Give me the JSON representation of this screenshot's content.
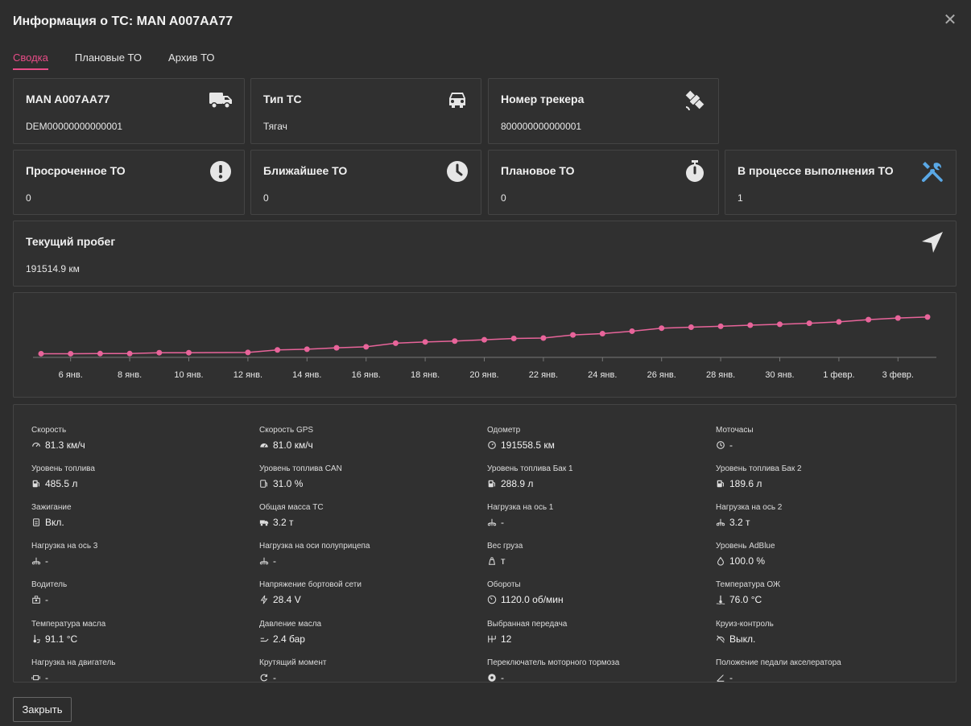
{
  "header": {
    "title": "Информация о ТС: MAN A007AA77",
    "close_glyph": "✕"
  },
  "tabs": [
    {
      "label": "Сводка",
      "active": true
    },
    {
      "label": "Плановые ТО",
      "active": false
    },
    {
      "label": "Архив ТО",
      "active": false
    }
  ],
  "cards": {
    "vehicle": {
      "title": "MAN A007AA77",
      "value": "DEM00000000000001",
      "icon": "truck-icon"
    },
    "type": {
      "title": "Тип ТС",
      "value": "Тягач",
      "icon": "car-icon"
    },
    "tracker": {
      "title": "Номер трекера",
      "value": "800000000000001",
      "icon": "satellite-icon"
    },
    "overdue": {
      "title": "Просроченное ТО",
      "value": "0",
      "icon": "exclamation-icon"
    },
    "nearest": {
      "title": "Ближайшее ТО",
      "value": "0",
      "icon": "clock-icon"
    },
    "planned": {
      "title": "Плановое ТО",
      "value": "0",
      "icon": "stopwatch-icon"
    },
    "in_progress": {
      "title": "В процессе выполнения ТО",
      "value": "1",
      "icon": "tools-icon",
      "icon_color": "#5aa8e6"
    },
    "mileage": {
      "title": "Текущий пробег",
      "value": "191514.9 км",
      "icon": "location-arrow-icon"
    }
  },
  "chart_data": {
    "type": "line",
    "title": "",
    "xlabel": "",
    "ylabel": "",
    "line_color": "#e8649a",
    "tick_labels": [
      "6 янв.",
      "8 янв.",
      "10 янв.",
      "12 янв.",
      "14 янв.",
      "16 янв.",
      "18 янв.",
      "20 янв.",
      "22 янв.",
      "24 янв.",
      "26 янв.",
      "28 янв.",
      "30 янв.",
      "1 февр.",
      "3 февр."
    ],
    "x_start_day": 5,
    "x_end_day": 35,
    "ylim": [
      187500,
      192000
    ],
    "points": [
      {
        "day": 5,
        "value": 187600
      },
      {
        "day": 6,
        "value": 187600
      },
      {
        "day": 7,
        "value": 187610
      },
      {
        "day": 8,
        "value": 187610
      },
      {
        "day": 9,
        "value": 187680
      },
      {
        "day": 10,
        "value": 187680
      },
      {
        "day": 12,
        "value": 187700
      },
      {
        "day": 13,
        "value": 187900
      },
      {
        "day": 14,
        "value": 187960
      },
      {
        "day": 15,
        "value": 188070
      },
      {
        "day": 16,
        "value": 188150
      },
      {
        "day": 17,
        "value": 188440
      },
      {
        "day": 18,
        "value": 188540
      },
      {
        "day": 19,
        "value": 188610
      },
      {
        "day": 20,
        "value": 188710
      },
      {
        "day": 21,
        "value": 188820
      },
      {
        "day": 22,
        "value": 188850
      },
      {
        "day": 23,
        "value": 189100
      },
      {
        "day": 24,
        "value": 189200
      },
      {
        "day": 25,
        "value": 189400
      },
      {
        "day": 26,
        "value": 189640
      },
      {
        "day": 27,
        "value": 189720
      },
      {
        "day": 28,
        "value": 189790
      },
      {
        "day": 29,
        "value": 189880
      },
      {
        "day": 30,
        "value": 189950
      },
      {
        "day": 31,
        "value": 190030
      },
      {
        "day": 32,
        "value": 190140
      },
      {
        "day": 33,
        "value": 190320
      },
      {
        "day": 34,
        "value": 190450
      },
      {
        "day": 35,
        "value": 190530
      }
    ]
  },
  "telemetry": [
    {
      "label": "Скорость",
      "value": "81.3 км/ч",
      "icon": "speedometer-icon"
    },
    {
      "label": "Скорость GPS",
      "value": "81.0 км/ч",
      "icon": "speedometer-filled-icon"
    },
    {
      "label": "Одометр",
      "value": "191558.5 км",
      "icon": "odometer-icon"
    },
    {
      "label": "Моточасы",
      "value": "-",
      "icon": "clock-small-icon"
    },
    {
      "label": "Уровень топлива",
      "value": "485.5 л",
      "icon": "fuel-icon"
    },
    {
      "label": "Уровень топлива CAN",
      "value": "31.0 %",
      "icon": "fuel-can-icon"
    },
    {
      "label": "Уровень топлива Бак 1",
      "value": "288.9 л",
      "icon": "fuel-icon"
    },
    {
      "label": "Уровень топлива Бак 2",
      "value": "189.6 л",
      "icon": "fuel-icon"
    },
    {
      "label": "Зажигание",
      "value": "Вкл.",
      "icon": "ignition-icon"
    },
    {
      "label": "Общая масса ТС",
      "value": "3.2 т",
      "icon": "truck-small-icon"
    },
    {
      "label": "Нагрузка на ось 1",
      "value": "-",
      "icon": "axle-icon"
    },
    {
      "label": "Нагрузка на ось 2",
      "value": "3.2 т",
      "icon": "axle-icon"
    },
    {
      "label": "Нагрузка на ось 3",
      "value": "-",
      "icon": "axle-icon"
    },
    {
      "label": "Нагрузка на оси полуприцепа",
      "value": "-",
      "icon": "axle-icon"
    },
    {
      "label": "Вес груза",
      "value": "т",
      "icon": "weight-icon"
    },
    {
      "label": "Уровень AdBlue",
      "value": "100.0 %",
      "icon": "drop-icon"
    },
    {
      "label": "Водитель",
      "value": "-",
      "icon": "driver-icon"
    },
    {
      "label": "Напряжение бортовой сети",
      "value": "28.4 V",
      "icon": "lightning-icon"
    },
    {
      "label": "Обороты",
      "value": "1120.0 об/мин",
      "icon": "rpm-icon"
    },
    {
      "label": "Температура ОЖ",
      "value": "76.0 °C",
      "icon": "coolant-temp-icon"
    },
    {
      "label": "Температура масла",
      "value": "91.1 °C",
      "icon": "oil-temp-icon"
    },
    {
      "label": "Давление масла",
      "value": "2.4 бар",
      "icon": "oil-pressure-icon"
    },
    {
      "label": "Выбранная передача",
      "value": "12",
      "icon": "gearbox-icon"
    },
    {
      "label": "Круиз-контроль",
      "value": "Выкл.",
      "icon": "cruise-icon"
    },
    {
      "label": "Нагрузка на двигатель",
      "value": "-",
      "icon": "engine-icon"
    },
    {
      "label": "Крутящий момент",
      "value": "-",
      "icon": "torque-icon"
    },
    {
      "label": "Переключатель моторного тормоза",
      "value": "-",
      "icon": "engine-brake-icon"
    },
    {
      "label": "Положение педали акселератора",
      "value": "-",
      "icon": "pedal-icon"
    }
  ],
  "footer": {
    "close_label": "Закрыть"
  }
}
